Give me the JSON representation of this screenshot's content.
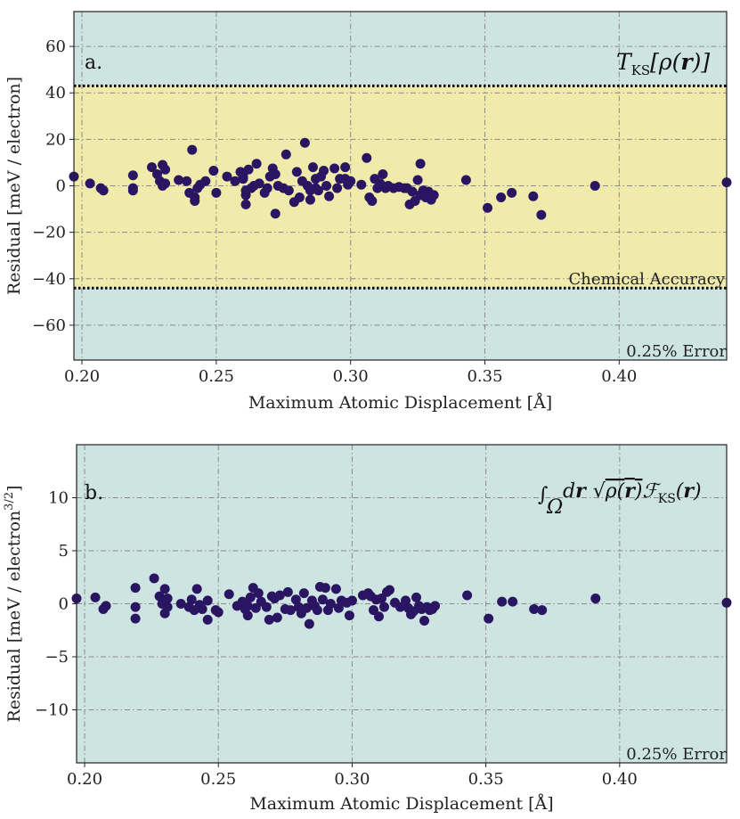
{
  "colors": {
    "background_band": "#cde4e0",
    "accuracy_band": "#f0eaab",
    "marker": "#2a1563",
    "grid": "#8a8a8a",
    "threshold_line": "#000000"
  },
  "chart_data": [
    {
      "type": "scatter",
      "panel_label": "a.",
      "formula": "T_KS[ρ(r)]",
      "xlabel": "Maximum Atomic Displacement [Å]",
      "ylabel": "Residual [meV / electron]",
      "xlim": [
        0.197,
        0.44
      ],
      "ylim": [
        -75,
        75
      ],
      "xticks": [
        0.2,
        0.25,
        0.3,
        0.35,
        0.4
      ],
      "xtick_labels": [
        "0.20",
        "0.25",
        "0.30",
        "0.35",
        "0.40"
      ],
      "yticks": [
        -60,
        -40,
        -20,
        0,
        20,
        40,
        60
      ],
      "ytick_labels": [
        "−60",
        "−40",
        "−20",
        "0",
        "20",
        "40",
        "60"
      ],
      "band": {
        "ymin": -44,
        "ymax": 43,
        "label": "Chemical Accuracy"
      },
      "error_label": "0.25% Error",
      "grid": true,
      "points": [
        [
          0.197,
          4
        ],
        [
          0.203,
          1
        ],
        [
          0.207,
          -1
        ],
        [
          0.208,
          -2
        ],
        [
          0.219,
          4.5
        ],
        [
          0.219,
          -2
        ],
        [
          0.219,
          -1
        ],
        [
          0.226,
          8
        ],
        [
          0.228,
          5
        ],
        [
          0.229,
          2
        ],
        [
          0.23,
          9
        ],
        [
          0.23,
          0
        ],
        [
          0.231,
          7
        ],
        [
          0.231,
          1
        ],
        [
          0.236,
          2.5
        ],
        [
          0.239,
          2
        ],
        [
          0.24,
          -3
        ],
        [
          0.241,
          15.5
        ],
        [
          0.242,
          -5
        ],
        [
          0.242,
          -6.5
        ],
        [
          0.243,
          -1
        ],
        [
          0.244,
          0.5
        ],
        [
          0.246,
          2
        ],
        [
          0.249,
          6.5
        ],
        [
          0.25,
          -3
        ],
        [
          0.254,
          4
        ],
        [
          0.257,
          2
        ],
        [
          0.259,
          6
        ],
        [
          0.26,
          4
        ],
        [
          0.26,
          3
        ],
        [
          0.261,
          -2
        ],
        [
          0.261,
          -4
        ],
        [
          0.261,
          -8
        ],
        [
          0.262,
          7
        ],
        [
          0.263,
          -1
        ],
        [
          0.264,
          0
        ],
        [
          0.265,
          9.5
        ],
        [
          0.266,
          1
        ],
        [
          0.268,
          -3
        ],
        [
          0.269,
          -1
        ],
        [
          0.27,
          4
        ],
        [
          0.271,
          7.5
        ],
        [
          0.272,
          5
        ],
        [
          0.272,
          -12
        ],
        [
          0.273,
          0
        ],
        [
          0.275,
          -1
        ],
        [
          0.276,
          13.5
        ],
        [
          0.277,
          -2
        ],
        [
          0.279,
          -7
        ],
        [
          0.28,
          6
        ],
        [
          0.281,
          -5
        ],
        [
          0.282,
          2
        ],
        [
          0.283,
          18.5
        ],
        [
          0.284,
          0
        ],
        [
          0.285,
          -2
        ],
        [
          0.285,
          -6
        ],
        [
          0.286,
          8
        ],
        [
          0.287,
          -1
        ],
        [
          0.287,
          3
        ],
        [
          0.288,
          -2
        ],
        [
          0.289,
          4
        ],
        [
          0.29,
          6.5
        ],
        [
          0.291,
          0
        ],
        [
          0.292,
          -4.5
        ],
        [
          0.294,
          7.5
        ],
        [
          0.295,
          -1
        ],
        [
          0.296,
          3
        ],
        [
          0.298,
          3
        ],
        [
          0.298,
          8
        ],
        [
          0.299,
          0.5
        ],
        [
          0.3,
          2
        ],
        [
          0.304,
          0.5
        ],
        [
          0.306,
          12
        ],
        [
          0.307,
          -5
        ],
        [
          0.308,
          -6.5
        ],
        [
          0.309,
          3
        ],
        [
          0.31,
          -1
        ],
        [
          0.311,
          1
        ],
        [
          0.312,
          5
        ],
        [
          0.313,
          -1
        ],
        [
          0.314,
          0
        ],
        [
          0.316,
          -1
        ],
        [
          0.318,
          -0.5
        ],
        [
          0.32,
          -1
        ],
        [
          0.321,
          -1
        ],
        [
          0.322,
          -8
        ],
        [
          0.323,
          -2.5
        ],
        [
          0.324,
          -6.5
        ],
        [
          0.325,
          2.5
        ],
        [
          0.326,
          9.5
        ],
        [
          0.326,
          -4
        ],
        [
          0.327,
          -2
        ],
        [
          0.328,
          -5
        ],
        [
          0.329,
          -2.5
        ],
        [
          0.33,
          -6
        ],
        [
          0.331,
          -4
        ],
        [
          0.343,
          2.5
        ],
        [
          0.351,
          -9.5
        ],
        [
          0.356,
          -5
        ],
        [
          0.36,
          -3
        ],
        [
          0.368,
          -4.5
        ],
        [
          0.371,
          -12.5
        ],
        [
          0.391,
          0
        ],
        [
          0.44,
          1.5
        ]
      ]
    },
    {
      "type": "scatter",
      "panel_label": "b.",
      "formula": "∫Ω dr √ρ(r) F_KS(r)",
      "xlabel": "Maximum Atomic Displacement [Å]",
      "ylabel": "Residual [meV / electron3/2]",
      "xlim": [
        0.197,
        0.44
      ],
      "ylim": [
        -15,
        15
      ],
      "xticks": [
        0.2,
        0.25,
        0.3,
        0.35,
        0.4
      ],
      "xtick_labels": [
        "0.20",
        "0.25",
        "0.30",
        "0.35",
        "0.40"
      ],
      "yticks": [
        -10,
        -5,
        0,
        5,
        10
      ],
      "ytick_labels": [
        "−10",
        "−5",
        "0",
        "5",
        "10"
      ],
      "error_label": "0.25% Error",
      "grid": true,
      "points": [
        [
          0.197,
          0.5
        ],
        [
          0.204,
          0.6
        ],
        [
          0.207,
          -0.5
        ],
        [
          0.208,
          -0.2
        ],
        [
          0.219,
          1.5
        ],
        [
          0.219,
          -0.3
        ],
        [
          0.219,
          -1.4
        ],
        [
          0.226,
          2.4
        ],
        [
          0.228,
          0.7
        ],
        [
          0.229,
          0
        ],
        [
          0.23,
          1.4
        ],
        [
          0.23,
          -0.9
        ],
        [
          0.231,
          0.5
        ],
        [
          0.231,
          -0.3
        ],
        [
          0.236,
          0
        ],
        [
          0.239,
          -0.3
        ],
        [
          0.24,
          0.4
        ],
        [
          0.241,
          -0.6
        ],
        [
          0.242,
          1.4
        ],
        [
          0.243,
          -0.1
        ],
        [
          0.244,
          -0.5
        ],
        [
          0.246,
          0.3
        ],
        [
          0.246,
          -1.5
        ],
        [
          0.249,
          -0.6
        ],
        [
          0.25,
          -0.8
        ],
        [
          0.254,
          0.9
        ],
        [
          0.257,
          -0.2
        ],
        [
          0.259,
          0.2
        ],
        [
          0.26,
          -0.5
        ],
        [
          0.261,
          -0.2
        ],
        [
          0.261,
          -1.1
        ],
        [
          0.262,
          0.6
        ],
        [
          0.263,
          1.5
        ],
        [
          0.264,
          -0.4
        ],
        [
          0.265,
          1
        ],
        [
          0.266,
          0.2
        ],
        [
          0.268,
          -0.3
        ],
        [
          0.269,
          -1.5
        ],
        [
          0.27,
          0.7
        ],
        [
          0.271,
          0.5
        ],
        [
          0.272,
          -1.3
        ],
        [
          0.273,
          0.8
        ],
        [
          0.275,
          -0.5
        ],
        [
          0.276,
          1.1
        ],
        [
          0.277,
          -0.6
        ],
        [
          0.279,
          0.4
        ],
        [
          0.28,
          -0.3
        ],
        [
          0.281,
          -0.9
        ],
        [
          0.282,
          1
        ],
        [
          0.283,
          -0.4
        ],
        [
          0.284,
          -1.9
        ],
        [
          0.285,
          0.3
        ],
        [
          0.286,
          -0.2
        ],
        [
          0.287,
          -0.6
        ],
        [
          0.288,
          1.6
        ],
        [
          0.289,
          0.4
        ],
        [
          0.29,
          1.5
        ],
        [
          0.291,
          -0.6
        ],
        [
          0.292,
          0
        ],
        [
          0.294,
          1.4
        ],
        [
          0.295,
          -0.4
        ],
        [
          0.296,
          0.3
        ],
        [
          0.298,
          0.1
        ],
        [
          0.299,
          -1.1
        ],
        [
          0.3,
          0.3
        ],
        [
          0.304,
          0.8
        ],
        [
          0.306,
          1
        ],
        [
          0.307,
          0.7
        ],
        [
          0.308,
          -0.6
        ],
        [
          0.309,
          0.4
        ],
        [
          0.31,
          -1.2
        ],
        [
          0.311,
          0.5
        ],
        [
          0.312,
          -0.3
        ],
        [
          0.313,
          1.1
        ],
        [
          0.314,
          1.3
        ],
        [
          0.316,
          0.1
        ],
        [
          0.318,
          -0.3
        ],
        [
          0.32,
          0.3
        ],
        [
          0.321,
          -0.4
        ],
        [
          0.322,
          -1
        ],
        [
          0.323,
          -0.7
        ],
        [
          0.324,
          0.6
        ],
        [
          0.325,
          -0.2
        ],
        [
          0.326,
          -0.5
        ],
        [
          0.327,
          -1.6
        ],
        [
          0.328,
          -0.3
        ],
        [
          0.329,
          -0.6
        ],
        [
          0.33,
          -0.5
        ],
        [
          0.331,
          -0.2
        ],
        [
          0.343,
          0.8
        ],
        [
          0.351,
          -1.4
        ],
        [
          0.356,
          0.2
        ],
        [
          0.36,
          0.2
        ],
        [
          0.368,
          -0.5
        ],
        [
          0.371,
          -0.6
        ],
        [
          0.391,
          0.5
        ],
        [
          0.44,
          0.1
        ]
      ]
    }
  ]
}
